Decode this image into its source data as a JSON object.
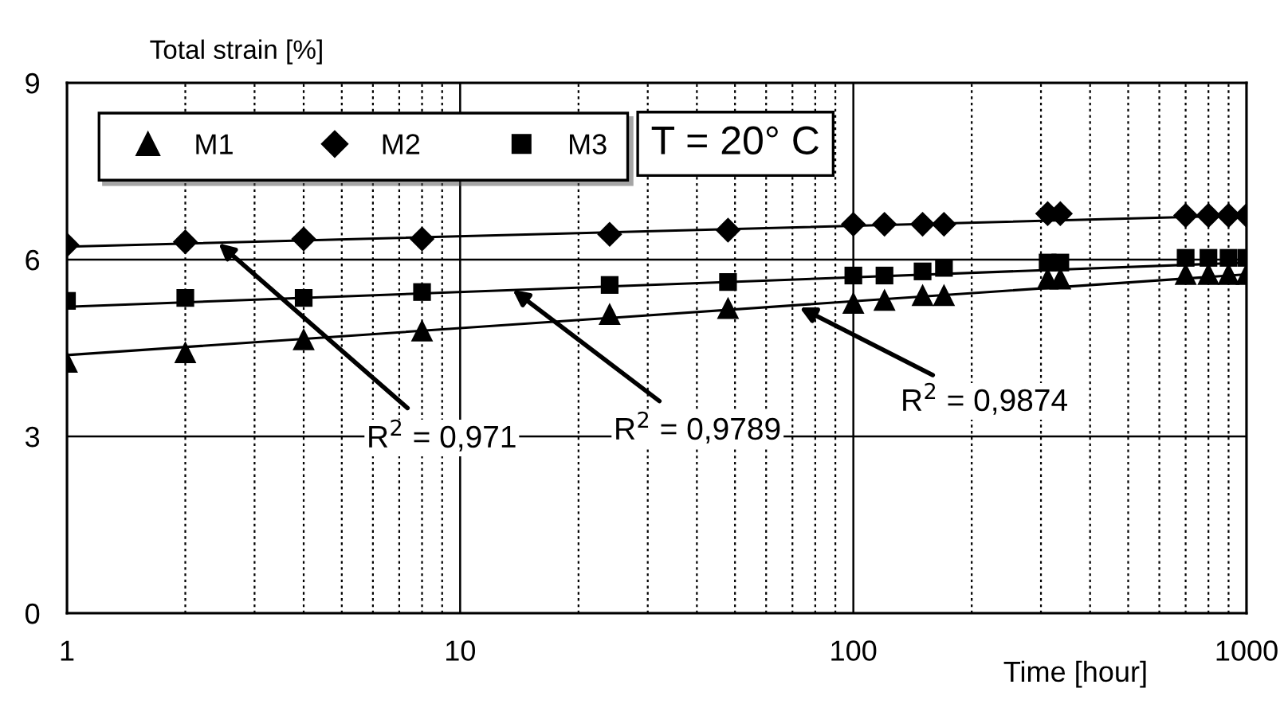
{
  "chart_data": {
    "type": "scatter",
    "ylabel": "Total strain [%]",
    "xlabel": "Time [hour]",
    "log": "x",
    "xlim": [
      1,
      1000
    ],
    "ylim": [
      0,
      9
    ],
    "xticks": [
      1,
      10,
      100,
      1000
    ],
    "yticks": [
      0,
      3,
      6,
      9
    ],
    "grid": true,
    "legend": "top left",
    "series": [
      {
        "name": "M1",
        "color": "#000000",
        "marker": "triangle",
        "x": [
          1,
          2,
          4,
          8,
          24,
          48,
          100,
          120,
          150,
          170,
          312,
          336,
          700,
          800,
          900,
          1000
        ],
        "values": [
          4.27,
          4.43,
          4.65,
          4.8,
          5.08,
          5.18,
          5.27,
          5.32,
          5.4,
          5.4,
          5.68,
          5.68,
          5.76,
          5.76,
          5.76,
          5.76
        ]
      },
      {
        "name": "M2",
        "color": "#000000",
        "marker": "diamond",
        "x": [
          1,
          2,
          4,
          8,
          24,
          48,
          100,
          120,
          150,
          170,
          312,
          336,
          700,
          800,
          900,
          1000
        ],
        "values": [
          6.25,
          6.3,
          6.35,
          6.35,
          6.43,
          6.5,
          6.6,
          6.6,
          6.6,
          6.6,
          6.78,
          6.78,
          6.75,
          6.75,
          6.75,
          6.75
        ]
      },
      {
        "name": "M3",
        "color": "#000000",
        "marker": "square",
        "x": [
          1,
          2,
          4,
          8,
          24,
          48,
          100,
          120,
          150,
          170,
          312,
          336,
          700,
          800,
          900,
          1000
        ],
        "values": [
          5.3,
          5.35,
          5.35,
          5.45,
          5.57,
          5.62,
          5.73,
          5.73,
          5.8,
          5.86,
          5.95,
          5.95,
          6.03,
          6.03,
          6.03,
          6.03
        ]
      },
      {
        "type": "line",
        "color": "#000000",
        "marker": "none",
        "x": [
          1,
          1000
        ],
        "values": [
          4.38,
          5.75
        ]
      },
      {
        "type": "line",
        "color": "#000000",
        "marker": "none",
        "x": [
          1,
          1000
        ],
        "values": [
          6.22,
          6.75
        ]
      },
      {
        "type": "line",
        "color": "#000000",
        "marker": "none",
        "x": [
          1,
          1000
        ],
        "values": [
          5.2,
          5.95
        ]
      }
    ],
    "annotations": [
      {
        "text": "R$^{2}$ = 0,971",
        "x": 2.43,
        "y": 6.28
      },
      {
        "text": "R$^{2}$ = 0,9789",
        "x": 13.6,
        "y": 5.49
      },
      {
        "text": "R$^{2}$ = 0,9874",
        "x": 73,
        "y": 5.19
      },
      "T = 20° C"
    ]
  }
}
